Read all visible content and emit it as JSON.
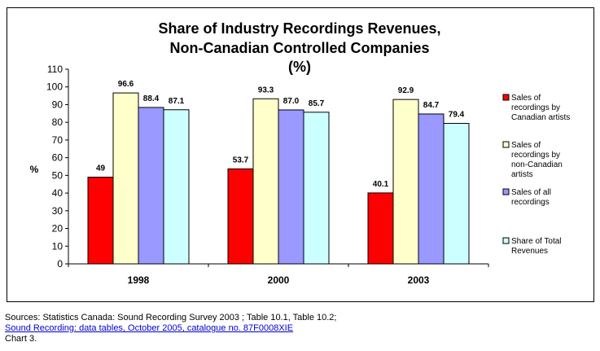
{
  "chart_data": {
    "type": "bar",
    "title_lines": [
      "Share of Industry Recordings Revenues,",
      "Non-Canadian Controlled Companies",
      "(%)"
    ],
    "ylabel": "%",
    "ylim": [
      0,
      110
    ],
    "ytick_step": 10,
    "grid": false,
    "legend_position": "right",
    "categories": [
      "1998",
      "2000",
      "2003"
    ],
    "series": [
      {
        "name_lines": [
          "Sales of",
          "recordings by",
          "Canadian artists"
        ],
        "color": "#ff0000",
        "values": [
          49,
          53.7,
          40.1
        ],
        "labels": [
          "49",
          "53.7",
          "40.1"
        ]
      },
      {
        "name_lines": [
          "Sales of",
          "recordings by",
          "non-Canadian",
          "artists"
        ],
        "color": "#ffffcc",
        "values": [
          96.6,
          93.3,
          92.9
        ],
        "labels": [
          "96.6",
          "93.3",
          "92.9"
        ]
      },
      {
        "name_lines": [
          "Sales of all",
          "recordings"
        ],
        "color": "#9999ff",
        "values": [
          88.4,
          87.0,
          84.7
        ],
        "labels": [
          "88.4",
          "87.0",
          "84.7"
        ]
      },
      {
        "name_lines": [
          "Share of Total",
          "Revenues"
        ],
        "color": "#ccffff",
        "values": [
          87.1,
          85.7,
          79.4
        ],
        "labels": [
          "87.1",
          "85.7",
          "79.4"
        ]
      }
    ]
  },
  "footer": {
    "sources": "Sources: Statistics Canada: Sound Recording Survey 2003 ; Table 10.1, Table 10.2;",
    "link_text": "Sound Recording: data tables, October 2005, catalogue no. 87F0008XIE",
    "chart_number": "Chart 3."
  }
}
